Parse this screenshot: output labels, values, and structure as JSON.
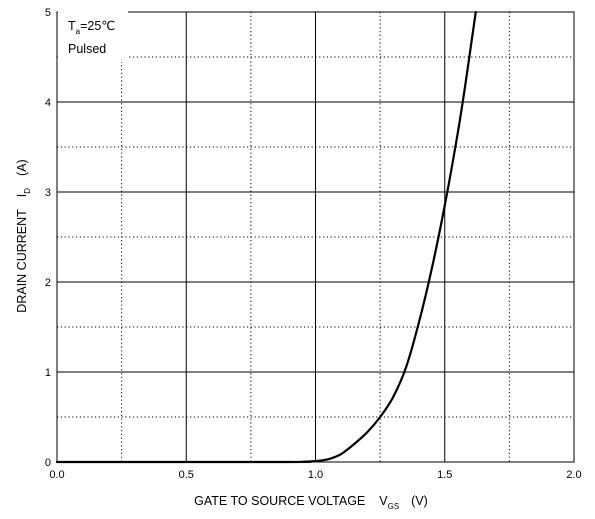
{
  "chart_data": {
    "type": "line",
    "x_axis": {
      "label_main": "GATE TO SOURCE VOLTAGE",
      "symbol": "V",
      "symbol_sub": "GS",
      "unit": "(V)",
      "range": [
        0,
        2
      ],
      "ticks": [
        0,
        0.5,
        1,
        1.5,
        2
      ],
      "tick_labels": [
        "0.0",
        "0.5",
        "1.0",
        "1.5",
        "2.0"
      ],
      "minor_ticks": [
        0.25,
        0.75,
        1.25,
        1.75
      ]
    },
    "y_axis": {
      "label_main": "DRAIN CURRENT",
      "symbol": "I",
      "symbol_sub": "D",
      "unit": "(A)",
      "range": [
        0,
        5
      ],
      "ticks": [
        0,
        1,
        2,
        3,
        4,
        5
      ],
      "tick_labels": [
        "0",
        "1",
        "2",
        "3",
        "4",
        "5"
      ],
      "minor_ticks": [
        0.5,
        1.5,
        2.5,
        3.5,
        4.5
      ]
    },
    "grid": "major solid, minor dotted",
    "annotations": {
      "temp_symbol": "T",
      "temp_sub": "a",
      "temp_value": "=25℃",
      "mode": "Pulsed"
    },
    "series": [
      {
        "color": "#000000",
        "x": [
          0.0,
          0.9,
          0.95,
          1.0,
          1.03,
          1.06,
          1.1,
          1.15,
          1.2,
          1.25,
          1.3,
          1.35,
          1.4,
          1.45,
          1.5,
          1.55,
          1.58,
          1.6,
          1.62
        ],
        "y": [
          0.0,
          0.0,
          0.003,
          0.01,
          0.02,
          0.04,
          0.09,
          0.2,
          0.33,
          0.5,
          0.72,
          1.05,
          1.55,
          2.15,
          2.85,
          3.65,
          4.2,
          4.6,
          5.0
        ]
      }
    ]
  }
}
